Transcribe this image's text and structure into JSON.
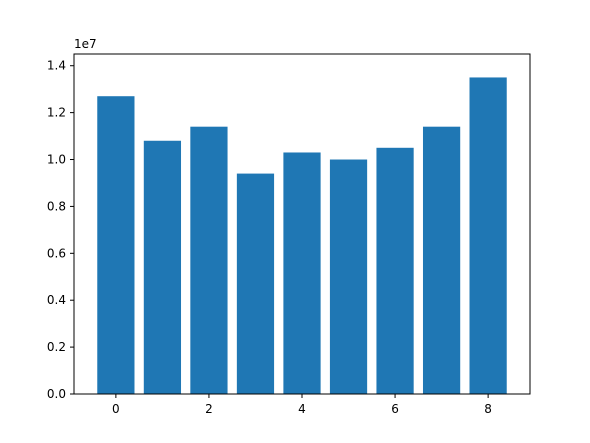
{
  "chart_data": {
    "type": "bar",
    "title": "",
    "xlabel": "",
    "ylabel": "",
    "x": [
      0,
      1,
      2,
      3,
      4,
      5,
      6,
      7,
      8
    ],
    "values": [
      12700000,
      10800000,
      11400000,
      9400000,
      10300000,
      10000000,
      10500000,
      11400000,
      13500000
    ],
    "bar_width": 0.8,
    "xlim": [
      -0.9,
      8.9
    ],
    "ylim": [
      0,
      14500000
    ],
    "x_ticks": [
      0,
      2,
      4,
      6,
      8
    ],
    "x_tick_labels": [
      "0",
      "2",
      "4",
      "6",
      "8"
    ],
    "y_ticks": [
      0,
      2000000,
      4000000,
      6000000,
      8000000,
      10000000,
      12000000,
      14000000
    ],
    "y_tick_labels": [
      "0.0",
      "0.2",
      "0.4",
      "0.6",
      "0.8",
      "1.0",
      "1.2",
      "1.4"
    ],
    "y_offset_label": "1e7",
    "grid": false,
    "bar_color": "#1f77b4"
  }
}
